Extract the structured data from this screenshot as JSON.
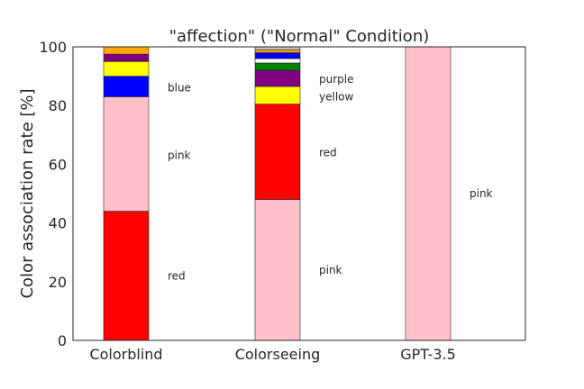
{
  "chart_data": {
    "type": "bar",
    "stacked": true,
    "title": "\"affection\" (\"Normal\" Condition)",
    "xlabel": "",
    "ylabel": "Color association rate [%]",
    "ylim": [
      0,
      100
    ],
    "yticks": [
      0,
      20,
      40,
      60,
      80,
      100
    ],
    "grid": false,
    "categories": [
      "Colorblind",
      "Colorseeing",
      "GPT-3.5"
    ],
    "bars": [
      {
        "category": "Colorblind",
        "segments": [
          {
            "color_name": "red",
            "value": 44,
            "color": "#ff0000"
          },
          {
            "color_name": "pink",
            "value": 39,
            "color": "#ffc0cb"
          },
          {
            "color_name": "blue",
            "value": 7,
            "color": "#0000ff"
          },
          {
            "color_name": "yellow",
            "value": 5,
            "color": "#ffff00"
          },
          {
            "color_name": "purple",
            "value": 2.5,
            "color": "#800080"
          },
          {
            "color_name": "orange",
            "value": 2.5,
            "color": "#ffa500"
          }
        ],
        "labels": [
          {
            "text": "red",
            "y": 22
          },
          {
            "text": "pink",
            "y": 63
          },
          {
            "text": "blue",
            "y": 86
          }
        ]
      },
      {
        "category": "Colorseeing",
        "segments": [
          {
            "color_name": "pink",
            "value": 48,
            "color": "#ffc0cb"
          },
          {
            "color_name": "red",
            "value": 32.5,
            "color": "#ff0000"
          },
          {
            "color_name": "yellow",
            "value": 6,
            "color": "#ffff00"
          },
          {
            "color_name": "purple",
            "value": 5.5,
            "color": "#800080"
          },
          {
            "color_name": "green",
            "value": 2.5,
            "color": "#008000"
          },
          {
            "color_name": "white",
            "value": 1.5,
            "color": "#ffffff"
          },
          {
            "color_name": "blue",
            "value": 2,
            "color": "#0000ff"
          },
          {
            "color_name": "orange",
            "value": 1,
            "color": "#ffa500"
          },
          {
            "color_name": "gray",
            "value": 1,
            "color": "#bfbfbf"
          }
        ],
        "labels": [
          {
            "text": "pink",
            "y": 24
          },
          {
            "text": "red",
            "y": 64
          },
          {
            "text": "yellow",
            "y": 83
          },
          {
            "text": "purple",
            "y": 89
          }
        ]
      },
      {
        "category": "GPT-3.5",
        "segments": [
          {
            "color_name": "pink",
            "value": 100,
            "color": "#ffc0cb"
          }
        ],
        "labels": [
          {
            "text": "pink",
            "y": 50
          }
        ]
      }
    ]
  }
}
